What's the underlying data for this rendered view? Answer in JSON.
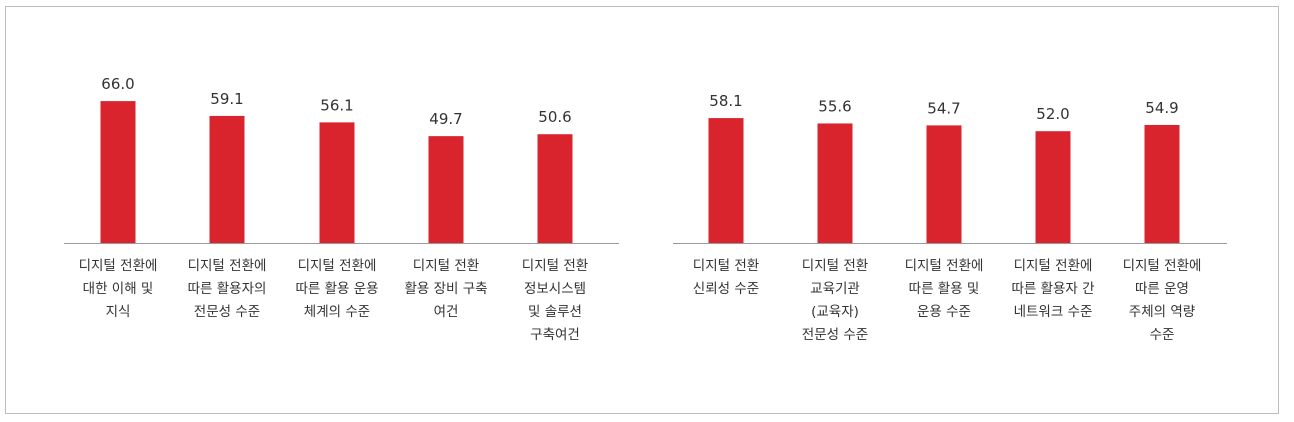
{
  "chart_data": [
    {
      "type": "bar",
      "categories": [
        [
          "디지털 전환에",
          "대한 이해 및",
          "지식"
        ],
        [
          "디지털 전환에",
          "따른 활용자의",
          "전문성 수준"
        ],
        [
          "디지털 전환에",
          "따른 활용 운용",
          "체계의 수준"
        ],
        [
          "디지털 전환",
          "활용 장비 구축",
          "여건"
        ],
        [
          "디지털 전환",
          "정보시스템",
          "및 솔루션",
          "구축여건"
        ]
      ],
      "values": [
        66.0,
        59.1,
        56.1,
        49.7,
        50.6
      ],
      "value_labels": [
        "66.0",
        "59.1",
        "56.1",
        "49.7",
        "50.6"
      ],
      "bar_color": "#d9232d"
    },
    {
      "type": "bar",
      "categories": [
        [
          "디지털 전환",
          "신뢰성 수준"
        ],
        [
          "디지털 전환",
          "교육기관",
          "(교육자)",
          "전문성 수준"
        ],
        [
          "디지털 전환에",
          "따른 활용 및",
          "운용 수준"
        ],
        [
          "디지털 전환에",
          "따른 활용자 간",
          "네트워크 수준"
        ],
        [
          "디지털 전환에",
          "따른 운영",
          "주체의 역량",
          "수준"
        ]
      ],
      "values": [
        58.1,
        55.6,
        54.7,
        52.0,
        54.9
      ],
      "value_labels": [
        "58.1",
        "55.6",
        "54.7",
        "52.0",
        "54.9"
      ],
      "bar_color": "#d9232d"
    }
  ]
}
